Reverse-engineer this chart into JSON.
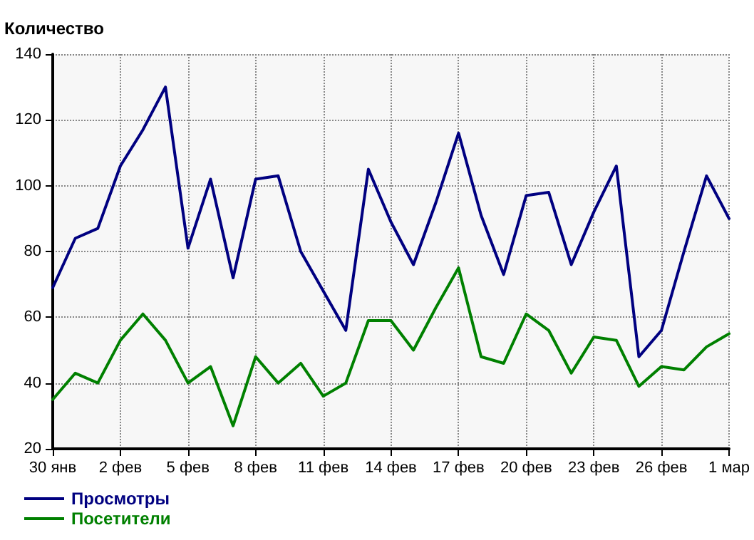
{
  "chart_data": {
    "type": "line",
    "ylabel": "Количество",
    "categories": [
      "30 янв",
      null,
      null,
      "2 фев",
      null,
      null,
      "5 фев",
      null,
      null,
      "8 фев",
      null,
      null,
      "11 фев",
      null,
      null,
      "14 фев",
      null,
      null,
      "17 фев",
      null,
      null,
      "20 фев",
      null,
      null,
      "23 фев",
      null,
      null,
      "26 фев",
      null,
      null,
      "1 мар"
    ],
    "series": [
      {
        "name": "Просмотры",
        "color": "#000080",
        "values": [
          69,
          84,
          87,
          106,
          117,
          130,
          81,
          102,
          72,
          102,
          103,
          80,
          68,
          56,
          105,
          89,
          76,
          95,
          116,
          91,
          73,
          97,
          98,
          76,
          92,
          106,
          48,
          56,
          80,
          103,
          90
        ]
      },
      {
        "name": "Посетители",
        "color": "#008000",
        "values": [
          35,
          43,
          40,
          53,
          61,
          53,
          40,
          45,
          27,
          48,
          40,
          46,
          36,
          40,
          59,
          59,
          50,
          63,
          75,
          48,
          46,
          61,
          56,
          43,
          54,
          53,
          39,
          45,
          44,
          51,
          55
        ]
      }
    ],
    "ylim": [
      20,
      140
    ],
    "yticks": [
      20,
      40,
      60,
      80,
      100,
      120,
      140
    ],
    "grid": true,
    "legend": "bottom left",
    "marker": "none",
    "line_style": "solid"
  }
}
